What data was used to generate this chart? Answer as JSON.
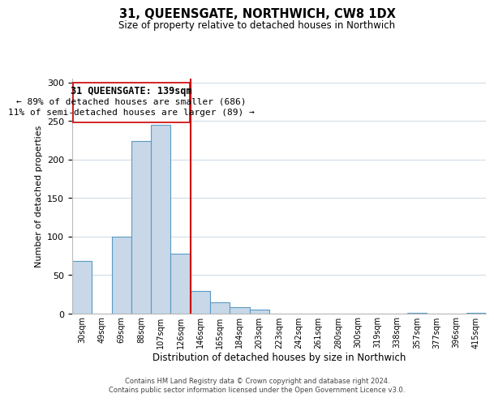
{
  "title": "31, QUEENSGATE, NORTHWICH, CW8 1DX",
  "subtitle": "Size of property relative to detached houses in Northwich",
  "xlabel": "Distribution of detached houses by size in Northwich",
  "ylabel": "Number of detached properties",
  "bar_labels": [
    "30sqm",
    "49sqm",
    "69sqm",
    "88sqm",
    "107sqm",
    "126sqm",
    "146sqm",
    "165sqm",
    "184sqm",
    "203sqm",
    "223sqm",
    "242sqm",
    "261sqm",
    "280sqm",
    "300sqm",
    "319sqm",
    "338sqm",
    "357sqm",
    "377sqm",
    "396sqm",
    "415sqm"
  ],
  "bar_heights": [
    68,
    0,
    100,
    224,
    245,
    78,
    29,
    15,
    8,
    5,
    0,
    0,
    0,
    0,
    0,
    0,
    0,
    1,
    0,
    0,
    1
  ],
  "bar_color": "#c8d8e8",
  "bar_edge_color": "#5a9bc4",
  "vline_x": 5.5,
  "vline_color": "#cc0000",
  "ylim": [
    0,
    305
  ],
  "yticks": [
    0,
    50,
    100,
    150,
    200,
    250,
    300
  ],
  "annotation_title": "31 QUEENSGATE: 139sqm",
  "annotation_line1": "← 89% of detached houses are smaller (686)",
  "annotation_line2": "11% of semi-detached houses are larger (89) →",
  "annotation_box_color": "#ffffff",
  "annotation_box_edge": "#cc0000",
  "footer1": "Contains HM Land Registry data © Crown copyright and database right 2024.",
  "footer2": "Contains public sector information licensed under the Open Government Licence v3.0.",
  "background_color": "#ffffff",
  "grid_color": "#d0dce8"
}
